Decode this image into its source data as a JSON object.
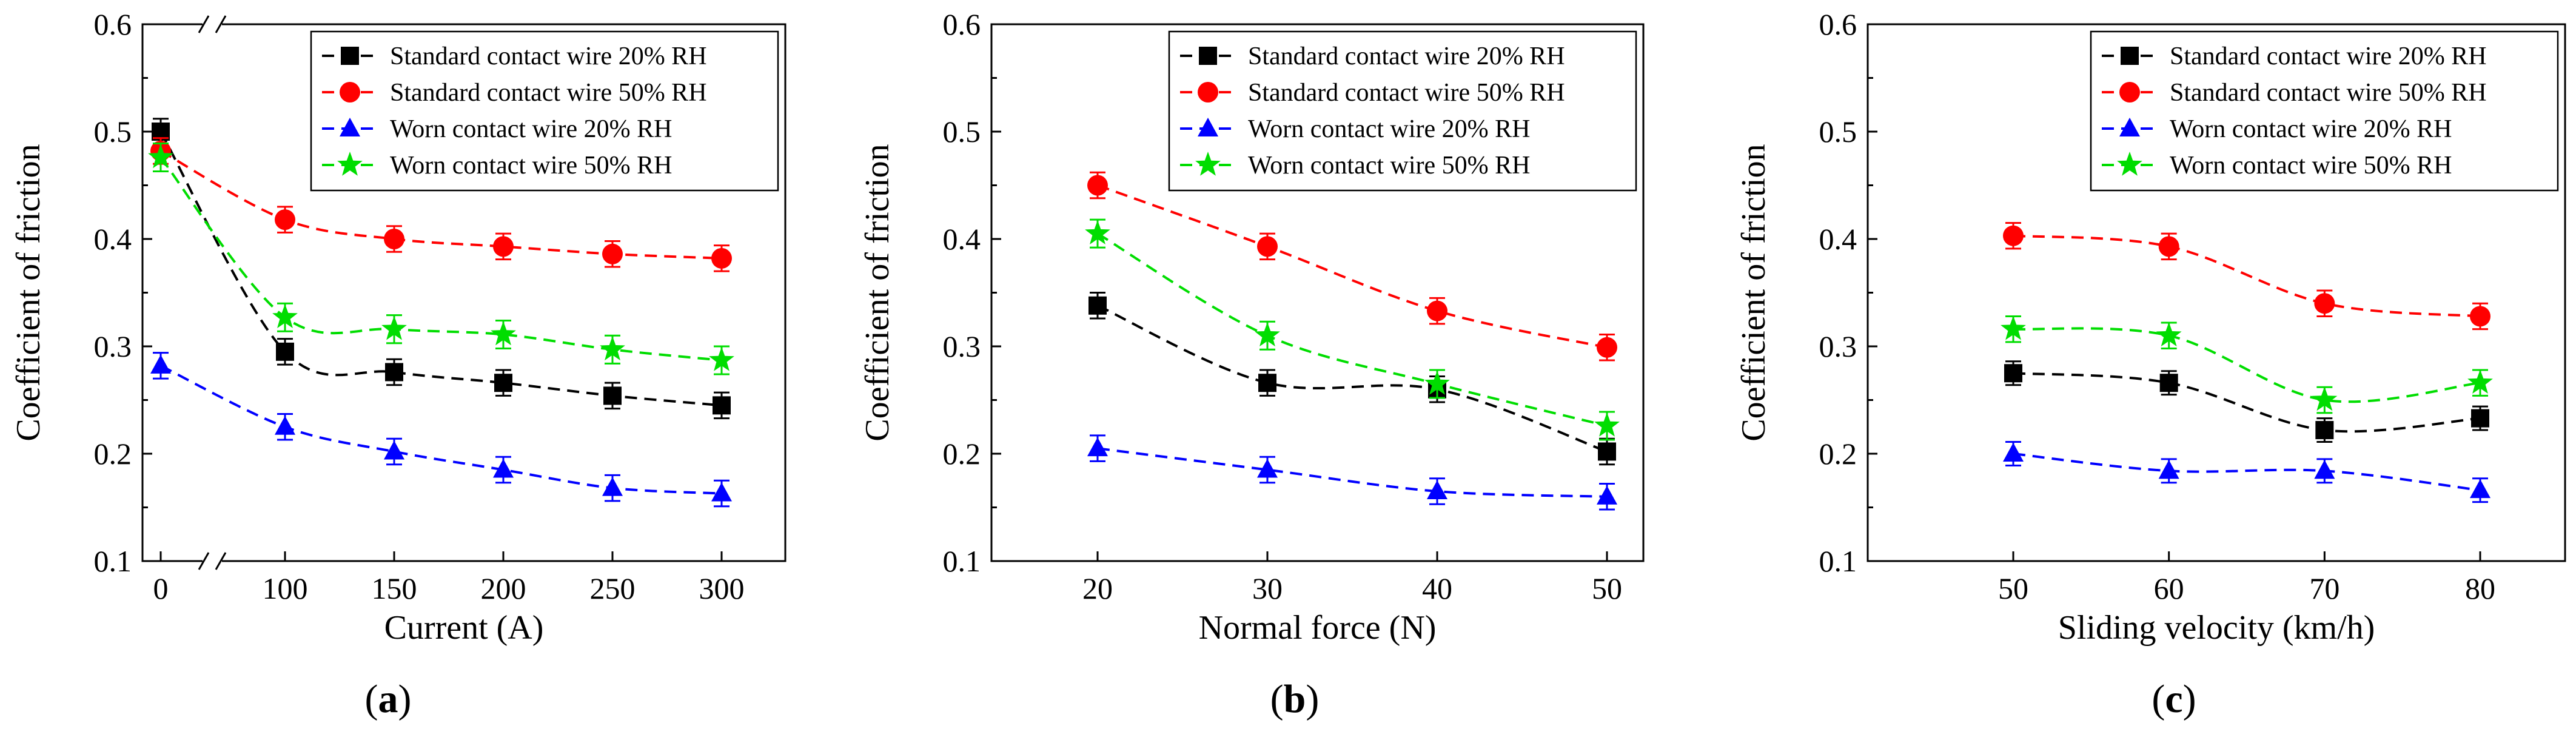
{
  "chart_data": [
    {
      "type": "line",
      "panel_label": "a",
      "xlabel": "Current (A)",
      "ylabel": "Coefficient of friction",
      "ylim": [
        0.1,
        0.6
      ],
      "y_ticks": [
        "0.1",
        "0.2",
        "0.3",
        "0.4",
        "0.5",
        "0.6"
      ],
      "x": [
        0,
        100,
        150,
        200,
        250,
        300
      ],
      "x_tick_labels": [
        "0",
        "100",
        "150",
        "200",
        "250",
        "300"
      ],
      "axis_break": "between 0 and 100",
      "grid": false,
      "legend_position": "top-right",
      "series": [
        {
          "name": "Standard contact wire 20% RH",
          "color": "#000000",
          "marker": "square",
          "values": [
            0.5,
            0.295,
            0.276,
            0.266,
            0.254,
            0.245
          ],
          "error": 0.012
        },
        {
          "name": "Standard contact wire 50% RH",
          "color": "#ff0000",
          "marker": "circle",
          "values": [
            0.482,
            0.418,
            0.4,
            0.393,
            0.386,
            0.382
          ],
          "error": 0.012
        },
        {
          "name": "Worn contact wire 20% RH",
          "color": "#0000ff",
          "marker": "triangle",
          "values": [
            0.282,
            0.225,
            0.202,
            0.185,
            0.168,
            0.163
          ],
          "error": 0.012
        },
        {
          "name": "Worn contact wire 50% RH",
          "color": "#00dd00",
          "marker": "star",
          "values": [
            0.476,
            0.327,
            0.316,
            0.311,
            0.297,
            0.287
          ],
          "error": 0.013
        }
      ]
    },
    {
      "type": "line",
      "panel_label": "b",
      "xlabel": "Normal force (N)",
      "ylabel": "Coefficient of friction",
      "ylim": [
        0.1,
        0.6
      ],
      "y_ticks": [
        "0.1",
        "0.2",
        "0.3",
        "0.4",
        "0.5",
        "0.6"
      ],
      "x": [
        20,
        30,
        40,
        50
      ],
      "x_tick_labels": [
        "20",
        "30",
        "40",
        "50"
      ],
      "grid": false,
      "legend_position": "top-right",
      "series": [
        {
          "name": "Standard contact wire 20% RH",
          "color": "#000000",
          "marker": "square",
          "values": [
            0.338,
            0.266,
            0.26,
            0.202
          ],
          "error": 0.012
        },
        {
          "name": "Standard contact wire 50% RH",
          "color": "#ff0000",
          "marker": "circle",
          "values": [
            0.45,
            0.393,
            0.333,
            0.299
          ],
          "error": 0.012
        },
        {
          "name": "Worn contact wire 20% RH",
          "color": "#0000ff",
          "marker": "triangle",
          "values": [
            0.205,
            0.185,
            0.165,
            0.16
          ],
          "error": 0.012
        },
        {
          "name": "Worn contact wire 50% RH",
          "color": "#00dd00",
          "marker": "star",
          "values": [
            0.405,
            0.31,
            0.265,
            0.226
          ],
          "error": 0.013
        }
      ]
    },
    {
      "type": "line",
      "panel_label": "c",
      "xlabel": "Sliding velocity (km/h)",
      "ylabel": "Coefficient of friction",
      "ylim": [
        0.1,
        0.6
      ],
      "y_ticks": [
        "0.1",
        "0.2",
        "0.3",
        "0.4",
        "0.5",
        "0.6"
      ],
      "x": [
        50,
        60,
        70,
        80
      ],
      "x_tick_labels": [
        "50",
        "60",
        "70",
        "80"
      ],
      "grid": false,
      "legend_position": "top-right",
      "series": [
        {
          "name": "Standard contact wire 20% RH",
          "color": "#000000",
          "marker": "square",
          "values": [
            0.275,
            0.266,
            0.222,
            0.233
          ],
          "error": 0.011
        },
        {
          "name": "Standard contact wire 50% RH",
          "color": "#ff0000",
          "marker": "circle",
          "values": [
            0.403,
            0.393,
            0.34,
            0.328
          ],
          "error": 0.012
        },
        {
          "name": "Worn contact wire 20% RH",
          "color": "#0000ff",
          "marker": "triangle",
          "values": [
            0.2,
            0.184,
            0.184,
            0.166
          ],
          "error": 0.011
        },
        {
          "name": "Worn contact wire 50% RH",
          "color": "#00dd00",
          "marker": "star",
          "values": [
            0.316,
            0.31,
            0.25,
            0.266
          ],
          "error": 0.012
        }
      ]
    }
  ]
}
